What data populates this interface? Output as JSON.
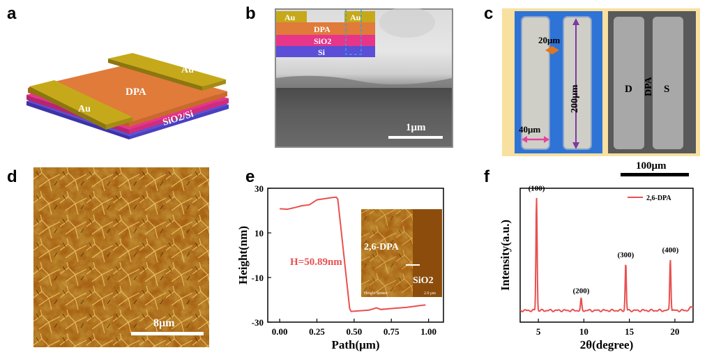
{
  "panels": {
    "a": {
      "label": "a",
      "texts": {
        "au_left": "Au",
        "au_right": "Au",
        "dpa": "DPA",
        "substrate": "SiO2/Si"
      }
    },
    "b": {
      "label": "b",
      "layers": {
        "au_left": "Au",
        "au_right": "Au",
        "dpa": "DPA",
        "sio2": "SiO2",
        "si": "Si"
      },
      "scale": "1μm"
    },
    "c": {
      "label": "c",
      "dims": {
        "gap": "20μm",
        "length": "200μm",
        "width": "40μm"
      },
      "electrodes": {
        "d": "D",
        "dpa": "DPA",
        "s": "S"
      },
      "scale": "100μm"
    },
    "d": {
      "label": "d",
      "scale": "8μm"
    },
    "e": {
      "label": "e",
      "annotation": "H=50.89nm",
      "inset": {
        "material": "2,6-DPA",
        "substrate": "SiO2",
        "caption": "Height Sensor",
        "scale": "2.0 μm"
      }
    },
    "f": {
      "label": "f"
    }
  },
  "chart_data": [
    {
      "id": "e",
      "type": "line",
      "xlabel": "Path(μm)",
      "ylabel": "Height(nm)",
      "xlim": [
        -0.08,
        1.1
      ],
      "ylim": [
        -30,
        30
      ],
      "xticks": [
        "0.00",
        "0.25",
        "0.50",
        "0.75",
        "1.00"
      ],
      "yticks": [
        "30",
        "10",
        "-10",
        "-30"
      ],
      "xtick_values": [
        0,
        0.25,
        0.5,
        0.75,
        1.0
      ],
      "ytick_values": [
        30,
        10,
        -10,
        -30
      ],
      "color": "#e8504f",
      "points": [
        [
          0.0,
          20.8
        ],
        [
          0.05,
          20.6
        ],
        [
          0.1,
          21.3
        ],
        [
          0.15,
          22.2
        ],
        [
          0.2,
          22.6
        ],
        [
          0.25,
          24.8
        ],
        [
          0.3,
          25.3
        ],
        [
          0.35,
          25.8
        ],
        [
          0.38,
          26.0
        ],
        [
          0.39,
          25.2
        ],
        [
          0.47,
          -24.0
        ],
        [
          0.48,
          -25.2
        ],
        [
          0.52,
          -25.0
        ],
        [
          0.6,
          -24.6
        ],
        [
          0.65,
          -23.6
        ],
        [
          0.68,
          -24.3
        ],
        [
          0.75,
          -23.9
        ],
        [
          0.85,
          -23.4
        ],
        [
          0.95,
          -22.5
        ],
        [
          0.98,
          -22.3
        ]
      ]
    },
    {
      "id": "f",
      "type": "line",
      "xlabel": "2θ(degree)",
      "ylabel": "Intensity(a.u.)",
      "xlim": [
        3,
        22
      ],
      "ylim": [
        0,
        1.15
      ],
      "xticks": [
        "5",
        "10",
        "15",
        "20"
      ],
      "xtick_values": [
        5,
        10,
        15,
        20
      ],
      "legend": "2,6-DPA",
      "color": "#e8504f",
      "peaks": [
        {
          "x": 4.8,
          "height": 0.98,
          "label": "(100)"
        },
        {
          "x": 9.7,
          "height": 0.1,
          "label": "(200)"
        },
        {
          "x": 14.6,
          "height": 0.41,
          "label": "(300)"
        },
        {
          "x": 19.5,
          "height": 0.45,
          "label": "(400)"
        }
      ]
    }
  ]
}
